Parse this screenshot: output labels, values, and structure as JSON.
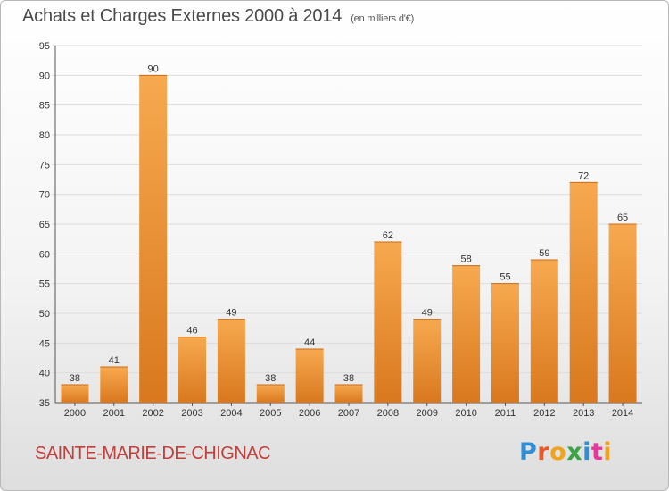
{
  "header": {
    "title": "Achats et Charges Externes 2000 à 2014",
    "unit": "(en milliers d'€)"
  },
  "footer": {
    "city": "SAINTE-MARIE-DE-CHIGNAC",
    "brand": "Proxiti"
  },
  "colors": {
    "bar_top": "#f7a94f",
    "bar_bottom": "#d9781e",
    "grid": "#dcdcdc",
    "city_text": "#c0403c"
  },
  "chart_data": {
    "type": "bar",
    "title": "Achats et Charges Externes 2000 à 2014",
    "subtitle": "(en milliers d'€)",
    "xlabel": "",
    "ylabel": "",
    "categories": [
      "2000",
      "2001",
      "2002",
      "2003",
      "2004",
      "2005",
      "2006",
      "2007",
      "2008",
      "2009",
      "2010",
      "2011",
      "2012",
      "2013",
      "2014"
    ],
    "values": [
      38,
      41,
      90,
      46,
      49,
      38,
      44,
      38,
      62,
      49,
      58,
      55,
      59,
      72,
      65
    ],
    "ylim": [
      35,
      95
    ],
    "yticks": [
      35,
      40,
      45,
      50,
      55,
      60,
      65,
      70,
      75,
      80,
      85,
      90,
      95
    ],
    "grid": true,
    "legend": "none"
  }
}
